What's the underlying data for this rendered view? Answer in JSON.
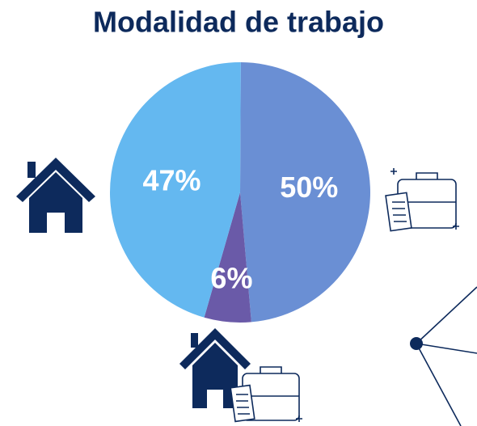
{
  "chart_data": {
    "type": "pie",
    "title": "Modalidad de trabajo",
    "values": [
      50,
      6,
      47
    ],
    "value_labels": [
      "50%",
      "6%",
      "47%"
    ],
    "colors": [
      "#6a8fd4",
      "#6a5aa8",
      "#64b8f0"
    ]
  }
}
